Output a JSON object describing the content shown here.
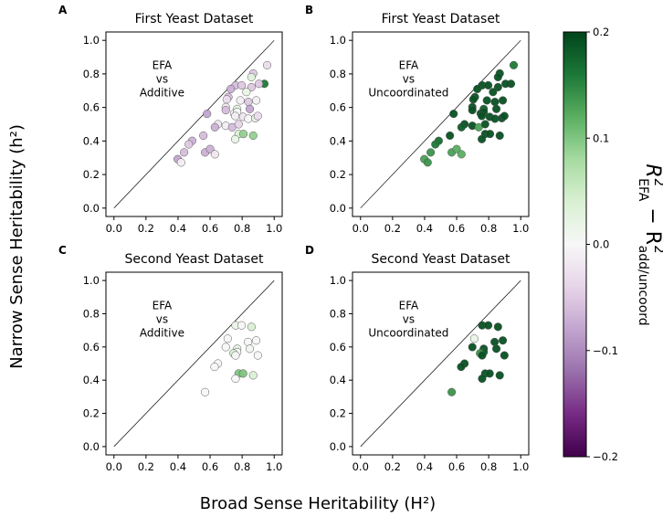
{
  "chart_data": {
    "type": "scatter",
    "xlabel": "Broad Sense Heritability (H²)",
    "ylabel": "Narrow Sense Heritability (h²)",
    "xlim": [
      -0.05,
      1.05
    ],
    "ylim": [
      -0.05,
      1.05
    ],
    "ticks": [
      "0.0",
      "0.2",
      "0.4",
      "0.6",
      "0.8",
      "1.0"
    ],
    "tick_values": [
      0,
      0.2,
      0.4,
      0.6,
      0.8,
      1.0
    ],
    "colorbar": {
      "label_main": "R",
      "label_sup1": "2",
      "label_sub1": "EFA",
      "label_minus": "− R",
      "label_sup2": "2",
      "label_sub2": "add/uncoord",
      "range": [
        -0.2,
        0.2
      ],
      "colormap": "PRGn",
      "ticks": [
        "0.2",
        "0.1",
        "0.0",
        "−0.1",
        "−0.2"
      ],
      "tick_values": [
        0.2,
        0.1,
        0.0,
        -0.1,
        -0.2
      ]
    },
    "panels": [
      {
        "letter": "A",
        "title": "First Yeast Dataset",
        "annotation": [
          "EFA",
          "vs",
          "Additive"
        ],
        "points": [
          [
            0.956,
            0.852,
            -0.03
          ],
          [
            0.869,
            0.803,
            -0.05
          ],
          [
            0.858,
            0.781,
            0.03
          ],
          [
            0.939,
            0.741,
            0.16
          ],
          [
            0.905,
            0.741,
            -0.05
          ],
          [
            0.759,
            0.732,
            -0.06
          ],
          [
            0.797,
            0.732,
            -0.05
          ],
          [
            0.858,
            0.721,
            -0.05
          ],
          [
            0.729,
            0.71,
            -0.07
          ],
          [
            0.827,
            0.692,
            0.02
          ],
          [
            0.714,
            0.662,
            -0.06
          ],
          [
            0.704,
            0.648,
            -0.03
          ],
          [
            0.789,
            0.642,
            -0.01
          ],
          [
            0.839,
            0.633,
            -0.05
          ],
          [
            0.888,
            0.642,
            -0.01
          ],
          [
            0.698,
            0.602,
            -0.02
          ],
          [
            0.769,
            0.591,
            0.03
          ],
          [
            0.698,
            0.584,
            -0.06
          ],
          [
            0.848,
            0.591,
            -0.08
          ],
          [
            0.581,
            0.562,
            -0.08
          ],
          [
            0.75,
            0.564,
            0.0
          ],
          [
            0.769,
            0.573,
            0.0
          ],
          [
            0.757,
            0.549,
            -0.01
          ],
          [
            0.806,
            0.544,
            -0.02
          ],
          [
            0.839,
            0.533,
            0.0
          ],
          [
            0.882,
            0.536,
            0.03
          ],
          [
            0.898,
            0.549,
            -0.03
          ],
          [
            0.649,
            0.5,
            -0.02
          ],
          [
            0.63,
            0.482,
            -0.07
          ],
          [
            0.698,
            0.491,
            -0.01
          ],
          [
            0.738,
            0.482,
            -0.06
          ],
          [
            0.778,
            0.5,
            -0.04
          ],
          [
            0.558,
            0.432,
            -0.06
          ],
          [
            0.778,
            0.442,
            0.04
          ],
          [
            0.808,
            0.442,
            0.09
          ],
          [
            0.869,
            0.432,
            0.09
          ],
          [
            0.757,
            0.411,
            0.02
          ],
          [
            0.488,
            0.401,
            -0.07
          ],
          [
            0.467,
            0.38,
            -0.05
          ],
          [
            0.438,
            0.332,
            -0.06
          ],
          [
            0.569,
            0.332,
            -0.07
          ],
          [
            0.6,
            0.352,
            -0.07
          ],
          [
            0.63,
            0.321,
            -0.02
          ],
          [
            0.398,
            0.292,
            -0.08
          ],
          [
            0.419,
            0.272,
            -0.01
          ]
        ]
      },
      {
        "letter": "B",
        "title": "First Yeast Dataset",
        "annotation": [
          "EFA",
          "vs",
          "Uncoordinated"
        ],
        "points": [
          [
            0.956,
            0.852,
            0.16
          ],
          [
            0.869,
            0.803,
            0.19
          ],
          [
            0.858,
            0.781,
            0.19
          ],
          [
            0.939,
            0.741,
            0.19
          ],
          [
            0.905,
            0.741,
            0.19
          ],
          [
            0.759,
            0.732,
            0.19
          ],
          [
            0.797,
            0.732,
            0.19
          ],
          [
            0.858,
            0.721,
            0.19
          ],
          [
            0.729,
            0.71,
            0.19
          ],
          [
            0.827,
            0.692,
            0.19
          ],
          [
            0.714,
            0.662,
            0.19
          ],
          [
            0.704,
            0.648,
            0.19
          ],
          [
            0.789,
            0.642,
            0.19
          ],
          [
            0.839,
            0.633,
            0.19
          ],
          [
            0.888,
            0.642,
            0.19
          ],
          [
            0.698,
            0.602,
            0.19
          ],
          [
            0.769,
            0.591,
            0.18
          ],
          [
            0.698,
            0.584,
            0.19
          ],
          [
            0.848,
            0.591,
            0.19
          ],
          [
            0.581,
            0.562,
            0.19
          ],
          [
            0.75,
            0.564,
            0.19
          ],
          [
            0.769,
            0.573,
            0.19
          ],
          [
            0.757,
            0.549,
            0.19
          ],
          [
            0.806,
            0.544,
            0.19
          ],
          [
            0.839,
            0.533,
            0.19
          ],
          [
            0.882,
            0.536,
            0.19
          ],
          [
            0.898,
            0.549,
            0.19
          ],
          [
            0.649,
            0.5,
            0.19
          ],
          [
            0.63,
            0.482,
            0.18
          ],
          [
            0.698,
            0.491,
            0.19
          ],
          [
            0.738,
            0.482,
            0.13
          ],
          [
            0.778,
            0.5,
            0.19
          ],
          [
            0.558,
            0.432,
            0.19
          ],
          [
            0.778,
            0.442,
            0.19
          ],
          [
            0.808,
            0.442,
            0.19
          ],
          [
            0.869,
            0.432,
            0.19
          ],
          [
            0.757,
            0.411,
            0.19
          ],
          [
            0.488,
            0.401,
            0.17
          ],
          [
            0.467,
            0.38,
            0.16
          ],
          [
            0.438,
            0.332,
            0.14
          ],
          [
            0.569,
            0.332,
            0.13
          ],
          [
            0.6,
            0.352,
            0.12
          ],
          [
            0.63,
            0.321,
            0.12
          ],
          [
            0.398,
            0.292,
            0.13
          ],
          [
            0.419,
            0.272,
            0.14
          ]
        ]
      },
      {
        "letter": "C",
        "title": "Second Yeast Dataset",
        "annotation": [
          "EFA",
          "vs",
          "Additive"
        ],
        "points": [
          [
            0.759,
            0.73,
            0.02
          ],
          [
            0.797,
            0.73,
            0.0
          ],
          [
            0.858,
            0.721,
            0.04
          ],
          [
            0.71,
            0.65,
            0.0
          ],
          [
            0.837,
            0.63,
            0.0
          ],
          [
            0.888,
            0.639,
            0.0
          ],
          [
            0.698,
            0.599,
            0.0
          ],
          [
            0.769,
            0.589,
            0.03
          ],
          [
            0.848,
            0.589,
            0.01
          ],
          [
            0.769,
            0.569,
            0.0
          ],
          [
            0.746,
            0.562,
            0.04
          ],
          [
            0.759,
            0.549,
            0.0
          ],
          [
            0.898,
            0.549,
            0.0
          ],
          [
            0.649,
            0.5,
            0.0
          ],
          [
            0.628,
            0.48,
            0.0
          ],
          [
            0.778,
            0.44,
            0.1
          ],
          [
            0.806,
            0.44,
            0.1
          ],
          [
            0.869,
            0.429,
            0.04
          ],
          [
            0.759,
            0.409,
            0.0
          ],
          [
            0.569,
            0.328,
            0.0
          ]
        ]
      },
      {
        "letter": "D",
        "title": "Second Yeast Dataset",
        "annotation": [
          "EFA",
          "vs",
          "Uncoordinated"
        ],
        "points": [
          [
            0.759,
            0.73,
            0.19
          ],
          [
            0.797,
            0.73,
            0.19
          ],
          [
            0.858,
            0.721,
            0.19
          ],
          [
            0.71,
            0.65,
            0.02
          ],
          [
            0.837,
            0.63,
            0.19
          ],
          [
            0.888,
            0.639,
            0.19
          ],
          [
            0.698,
            0.599,
            0.19
          ],
          [
            0.769,
            0.589,
            0.19
          ],
          [
            0.848,
            0.589,
            0.19
          ],
          [
            0.769,
            0.569,
            0.18
          ],
          [
            0.746,
            0.562,
            0.14
          ],
          [
            0.759,
            0.549,
            0.19
          ],
          [
            0.898,
            0.549,
            0.19
          ],
          [
            0.649,
            0.5,
            0.19
          ],
          [
            0.628,
            0.48,
            0.19
          ],
          [
            0.778,
            0.44,
            0.19
          ],
          [
            0.806,
            0.44,
            0.19
          ],
          [
            0.869,
            0.429,
            0.19
          ],
          [
            0.759,
            0.409,
            0.19
          ],
          [
            0.569,
            0.328,
            0.14
          ]
        ]
      }
    ]
  }
}
